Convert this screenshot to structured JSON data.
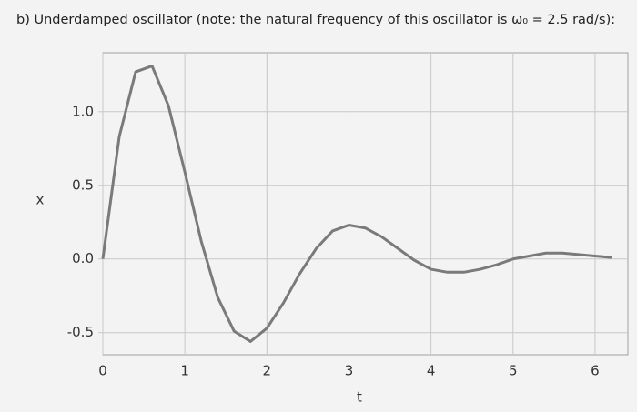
{
  "chart_data": {
    "type": "line",
    "title": "b) Underdamped oscillator (note: the natural frequency of this oscillator is ω₀ = 2.5 rad/s):",
    "x_label": "t",
    "y_label": "x",
    "x": [
      0,
      0.2,
      0.4,
      0.6,
      0.8,
      1.0,
      1.2,
      1.4,
      1.6,
      1.8,
      2.0,
      2.2,
      2.4,
      2.6,
      2.8,
      3.0,
      3.2,
      3.4,
      3.6,
      3.8,
      4.0,
      4.2,
      4.4,
      4.6,
      4.8,
      5.0,
      5.2,
      5.4,
      5.6,
      5.8,
      6.0,
      6.2
    ],
    "series": [
      {
        "color": "#7a7a7a",
        "values": [
          0,
          0.83,
          1.27,
          1.31,
          1.04,
          0.59,
          0.12,
          -0.26,
          -0.49,
          -0.56,
          -0.47,
          -0.3,
          -0.1,
          0.07,
          0.19,
          0.23,
          0.21,
          0.15,
          0.07,
          -0.01,
          -0.07,
          -0.09,
          -0.09,
          -0.07,
          -0.04,
          0.0,
          0.02,
          0.04,
          0.04,
          0.03,
          0.02,
          0.01
        ]
      }
    ],
    "xlim": [
      0,
      6.4
    ],
    "ylim": [
      -0.65,
      1.4
    ],
    "xticks": [
      0,
      1,
      2,
      3,
      4,
      5,
      6
    ],
    "yticks": [
      -0.5,
      {
        "value": 0,
        "label": "0.0"
      },
      0.5,
      {
        "value": 1,
        "label": "1.0"
      }
    ],
    "grid": true
  }
}
